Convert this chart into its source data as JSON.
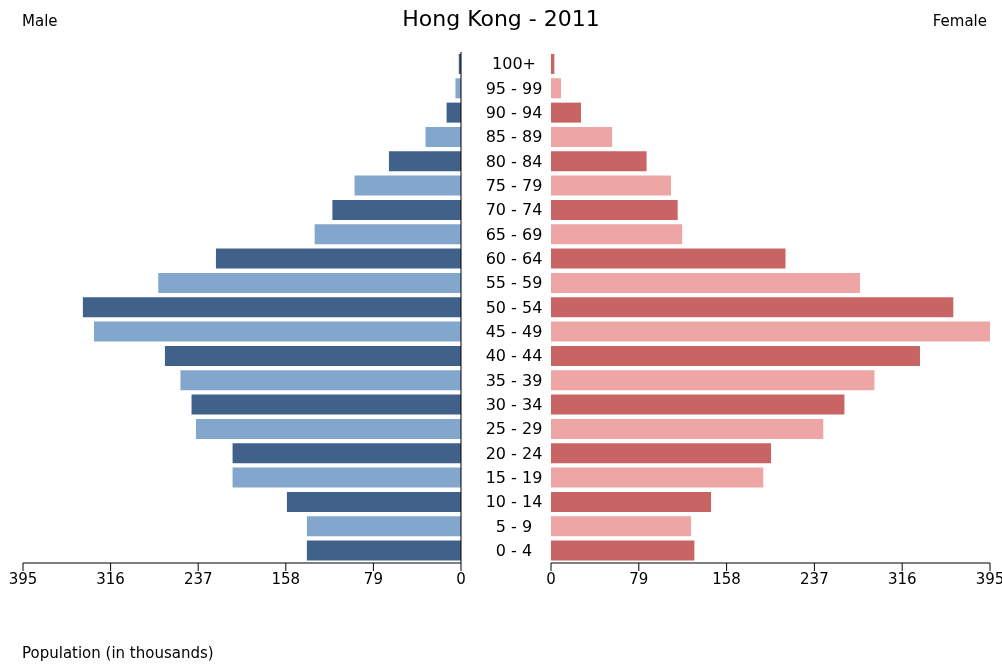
{
  "chart_data": [
    {
      "type": "bar",
      "orientation": "horizontal",
      "title": "Hong Kong - 2011",
      "xlabel": "Population (in thousands)",
      "categories": [
        "100+",
        "95 - 99",
        "90 - 94",
        "85 - 89",
        "80 - 84",
        "75 - 79",
        "70 - 74",
        "65 - 69",
        "60 - 64",
        "55 - 59",
        "50 - 54",
        "45 - 49",
        "40 - 44",
        "35 - 39",
        "30 - 34",
        "25 - 29",
        "20 - 24",
        "15 - 19",
        "10 - 14",
        "5 - 9",
        "0 - 4"
      ],
      "series": [
        {
          "name": "Male",
          "values": [
            2,
            5,
            13,
            32,
            65,
            96,
            116,
            132,
            221,
            273,
            341,
            331,
            267,
            253,
            243,
            239,
            206,
            206,
            157,
            139,
            139
          ],
          "colors": [
            "#40618a",
            "#83a6cc",
            "#40618a",
            "#83a6cc",
            "#40618a",
            "#83a6cc",
            "#40618a",
            "#83a6cc",
            "#40618a",
            "#83a6cc",
            "#40618a",
            "#83a6cc",
            "#40618a",
            "#83a6cc",
            "#40618a",
            "#83a6cc",
            "#40618a",
            "#83a6cc",
            "#40618a",
            "#83a6cc",
            "#40618a"
          ]
        }
      ],
      "xlim": [
        395,
        0
      ],
      "xticks": [
        395,
        316,
        237,
        158,
        79,
        0
      ],
      "grid": false
    },
    {
      "type": "bar",
      "orientation": "horizontal",
      "series": [
        {
          "name": "Female",
          "values": [
            3,
            9,
            27,
            55,
            86,
            108,
            114,
            118,
            211,
            278,
            362,
            395,
            332,
            291,
            264,
            245,
            198,
            191,
            144,
            126,
            129
          ],
          "colors": [
            "#c86464",
            "#eda5a5",
            "#c86464",
            "#eda5a5",
            "#c86464",
            "#eda5a5",
            "#c86464",
            "#eda5a5",
            "#c86464",
            "#eda5a5",
            "#c86464",
            "#eda5a5",
            "#c86464",
            "#eda5a5",
            "#c86464",
            "#eda5a5",
            "#c86464",
            "#eda5a5",
            "#c86464",
            "#eda5a5",
            "#c86464"
          ]
        }
      ],
      "xlim": [
        0,
        395
      ],
      "xticks": [
        0,
        79,
        158,
        237,
        316,
        395
      ],
      "grid": false
    }
  ]
}
